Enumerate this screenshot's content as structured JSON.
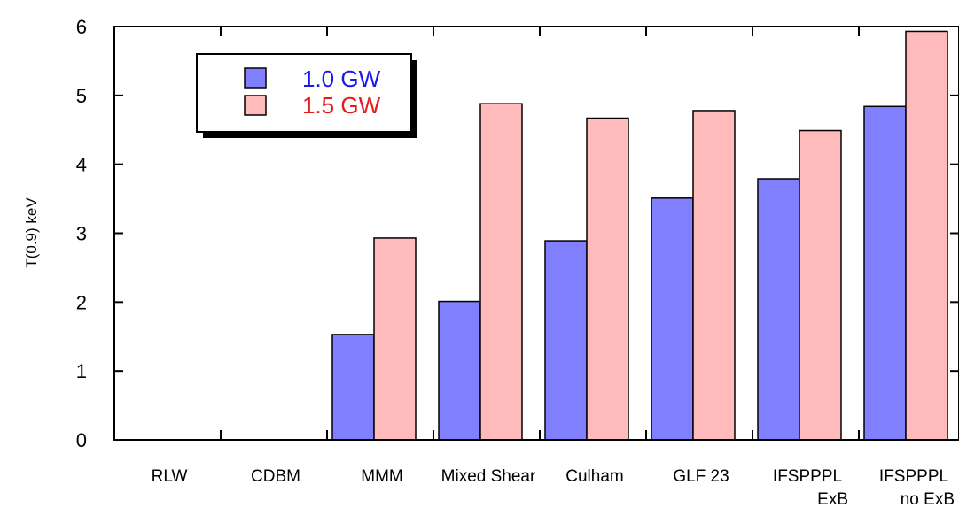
{
  "chart_data": {
    "type": "bar",
    "title": "",
    "xlabel": "",
    "ylabel": "T(0.9) keV",
    "ylim": [
      0,
      6
    ],
    "yticks": [
      "0",
      "1",
      "2",
      "3",
      "4",
      "5",
      "6"
    ],
    "grid": false,
    "legend_position": "top-left",
    "categories": [
      [
        "RLW"
      ],
      [
        "CDBM"
      ],
      [
        "MMM"
      ],
      [
        "Mixed Shear"
      ],
      [
        "Culham"
      ],
      [
        "GLF 23"
      ],
      [
        "IFSPPPL",
        "ExB"
      ],
      [
        "IFSPPPL",
        "no ExB"
      ]
    ],
    "series": [
      {
        "name": "1.0 GW",
        "color": "#8080ff",
        "label_color": "#1a1ae6",
        "values": [
          0,
          0,
          1.53,
          2.01,
          2.89,
          3.51,
          3.79,
          4.84
        ]
      },
      {
        "name": "1.5 GW",
        "color": "#ffbbbb",
        "label_color": "#e61a1a",
        "values": [
          0,
          0,
          2.93,
          4.88,
          4.67,
          4.78,
          4.49,
          5.93
        ]
      }
    ]
  }
}
